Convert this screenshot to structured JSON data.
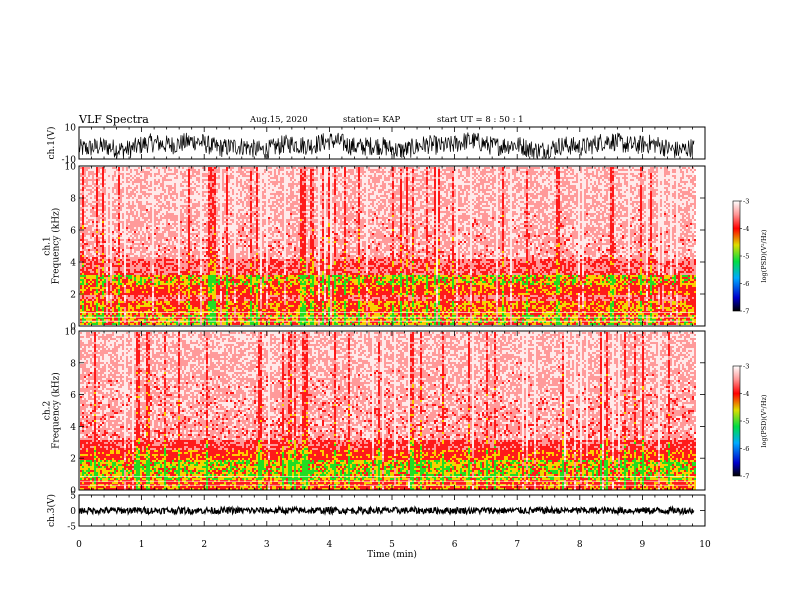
{
  "header": {
    "title": "VLF Spectra",
    "date": "Aug.15, 2020",
    "station": "station= KAP",
    "start_ut": "start UT =  8 : 50 : 1"
  },
  "chart_data": [
    {
      "type": "line",
      "name": "ch1-waveform",
      "ylabel": "ch.1(V)",
      "ylim": [
        -10,
        10
      ],
      "yticks": [
        "10",
        "-10"
      ],
      "xlim": [
        0,
        10
      ],
      "x_extent": 9.83
    },
    {
      "type": "heatmap",
      "name": "ch1-spectrogram",
      "ylabel": "ch.1\nFrequency (kHz)",
      "ylim": [
        0,
        10
      ],
      "yticks": [
        "0",
        "2",
        "4",
        "6",
        "8",
        "10"
      ],
      "xlim": [
        0,
        10
      ],
      "x_extent": 9.83,
      "colorbar": {
        "label": "log(PSD)(V²/Hz)",
        "range": [
          -7,
          -3
        ],
        "ticks": [
          "-3",
          "-4",
          "-5",
          "-6",
          "-7"
        ]
      }
    },
    {
      "type": "heatmap",
      "name": "ch2-spectrogram",
      "ylabel": "ch.2\nFrequency (kHz)",
      "ylim": [
        0,
        10
      ],
      "yticks": [
        "0",
        "2",
        "4",
        "6",
        "8",
        "10"
      ],
      "xlim": [
        0,
        10
      ],
      "x_extent": 9.83,
      "colorbar": {
        "label": "log(PSD)(V²/Hz)",
        "range": [
          -7,
          -3
        ],
        "ticks": [
          "-3",
          "-4",
          "-5",
          "-6",
          "-7"
        ]
      }
    },
    {
      "type": "line",
      "name": "ch3-waveform",
      "ylabel": "ch.3(V)",
      "ylim": [
        -5,
        5
      ],
      "yticks": [
        "5",
        "0",
        "-5"
      ],
      "xlim": [
        0,
        10
      ],
      "x_extent": 9.83,
      "xlabel": "Time (min)",
      "xticks": [
        "0",
        "1",
        "2",
        "3",
        "4",
        "5",
        "6",
        "7",
        "8",
        "9",
        "10"
      ]
    }
  ]
}
